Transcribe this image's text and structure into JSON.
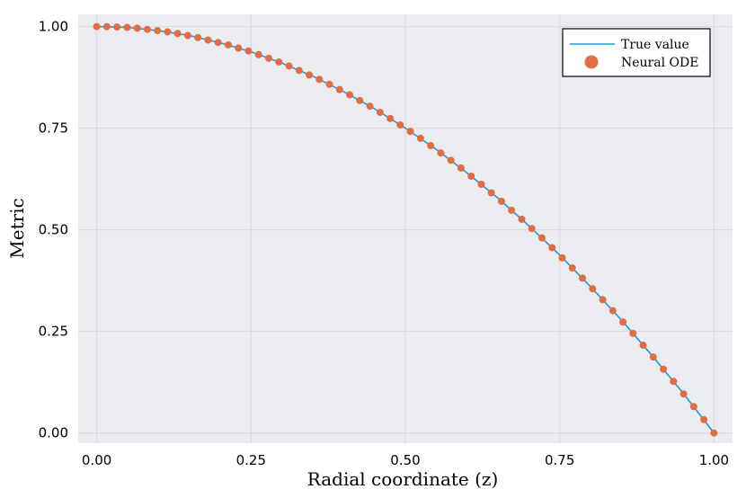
{
  "chart_data": {
    "type": "line",
    "xlabel": "Radial coordinate (z)",
    "ylabel": "Metric",
    "xlim": [
      -0.03,
      1.03
    ],
    "ylim": [
      -0.025,
      1.03
    ],
    "xticks": [
      0.0,
      0.25,
      0.5,
      0.75,
      1.0
    ],
    "xtick_labels": [
      "0.00",
      "0.25",
      "0.50",
      "0.75",
      "1.00"
    ],
    "yticks": [
      0.0,
      0.25,
      0.5,
      0.75,
      1.0
    ],
    "ytick_labels": [
      "0.00",
      "0.25",
      "0.50",
      "0.75",
      "1.00"
    ],
    "grid": true,
    "legend_position": "top-right",
    "series": [
      {
        "name": "True value",
        "kind": "line",
        "color": "#1f9ad6",
        "x": [
          0.0,
          0.025,
          0.05,
          0.075,
          0.1,
          0.125,
          0.15,
          0.175,
          0.2,
          0.225,
          0.25,
          0.275,
          0.3,
          0.325,
          0.35,
          0.375,
          0.4,
          0.425,
          0.45,
          0.475,
          0.5,
          0.525,
          0.55,
          0.575,
          0.6,
          0.625,
          0.65,
          0.675,
          0.7,
          0.725,
          0.75,
          0.775,
          0.8,
          0.825,
          0.85,
          0.875,
          0.9,
          0.925,
          0.95,
          0.975,
          1.0
        ],
        "y": [
          1.0,
          0.999,
          0.998,
          0.994,
          0.99,
          0.984,
          0.978,
          0.969,
          0.96,
          0.949,
          0.938,
          0.924,
          0.91,
          0.894,
          0.878,
          0.859,
          0.84,
          0.819,
          0.798,
          0.774,
          0.75,
          0.724,
          0.698,
          0.669,
          0.64,
          0.609,
          0.578,
          0.544,
          0.51,
          0.474,
          0.438,
          0.399,
          0.36,
          0.319,
          0.278,
          0.234,
          0.19,
          0.144,
          0.098,
          0.049,
          0.0
        ]
      },
      {
        "name": "Neural ODE",
        "kind": "scatter",
        "color": "#e26c44",
        "x": [
          0.0,
          0.0164,
          0.0328,
          0.0492,
          0.0656,
          0.082,
          0.0984,
          0.1148,
          0.1311,
          0.1475,
          0.1639,
          0.1803,
          0.1967,
          0.2131,
          0.2295,
          0.2459,
          0.2623,
          0.2787,
          0.2951,
          0.3115,
          0.3279,
          0.3443,
          0.3607,
          0.377,
          0.3934,
          0.4098,
          0.4262,
          0.4426,
          0.459,
          0.4754,
          0.4918,
          0.5082,
          0.5246,
          0.541,
          0.5574,
          0.5738,
          0.5902,
          0.6066,
          0.623,
          0.6393,
          0.6557,
          0.6721,
          0.6885,
          0.7049,
          0.7213,
          0.7377,
          0.7541,
          0.7705,
          0.7869,
          0.8033,
          0.8197,
          0.8361,
          0.8525,
          0.8689,
          0.8852,
          0.9016,
          0.918,
          0.9344,
          0.9508,
          0.9672,
          0.9836,
          1.0
        ],
        "y": [
          1.0,
          1.0,
          0.999,
          0.998,
          0.996,
          0.993,
          0.99,
          0.987,
          0.983,
          0.978,
          0.973,
          0.967,
          0.961,
          0.955,
          0.947,
          0.94,
          0.931,
          0.922,
          0.913,
          0.903,
          0.892,
          0.881,
          0.87,
          0.858,
          0.845,
          0.832,
          0.818,
          0.804,
          0.789,
          0.774,
          0.758,
          0.742,
          0.725,
          0.707,
          0.689,
          0.671,
          0.652,
          0.632,
          0.612,
          0.591,
          0.57,
          0.548,
          0.526,
          0.503,
          0.48,
          0.456,
          0.431,
          0.406,
          0.381,
          0.355,
          0.328,
          0.301,
          0.273,
          0.245,
          0.216,
          0.187,
          0.157,
          0.127,
          0.096,
          0.065,
          0.033,
          0.0
        ]
      }
    ]
  }
}
